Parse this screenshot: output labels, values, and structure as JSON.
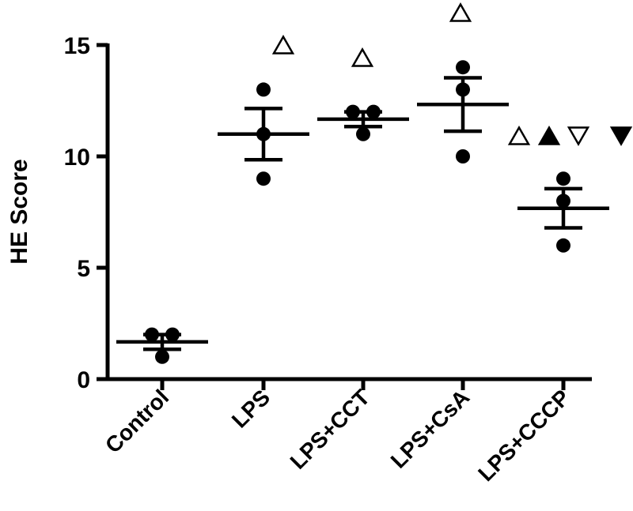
{
  "chart_data": {
    "type": "scatter",
    "title": "",
    "xlabel": "",
    "ylabel": "HE Score",
    "ylim": [
      0,
      15
    ],
    "yticks": [
      0,
      5,
      10,
      15
    ],
    "grid": false,
    "categories": [
      "Control",
      "LPS",
      "LPS+CCT",
      "LPS+CsA",
      "LPS+CCCP"
    ],
    "points": [
      [
        2,
        2,
        1
      ],
      [
        13,
        11,
        9
      ],
      [
        12,
        12,
        11
      ],
      [
        14,
        13,
        10
      ],
      [
        9,
        8,
        6
      ]
    ],
    "mean": [
      1.67,
      11.0,
      11.67,
      12.33,
      7.67
    ],
    "sem": [
      0.33,
      1.15,
      0.33,
      1.2,
      0.88
    ],
    "significance_markers": [
      {
        "category": "LPS",
        "symbols": [
          "open-triangle-up"
        ]
      },
      {
        "category": "LPS+CCT",
        "symbols": [
          "open-triangle-up"
        ]
      },
      {
        "category": "LPS+CsA",
        "symbols": [
          "open-triangle-up"
        ]
      },
      {
        "category": "LPS+CCCP",
        "symbols": [
          "open-triangle-up",
          "filled-triangle-up",
          "open-triangle-down",
          "filled-triangle-down"
        ]
      }
    ]
  }
}
